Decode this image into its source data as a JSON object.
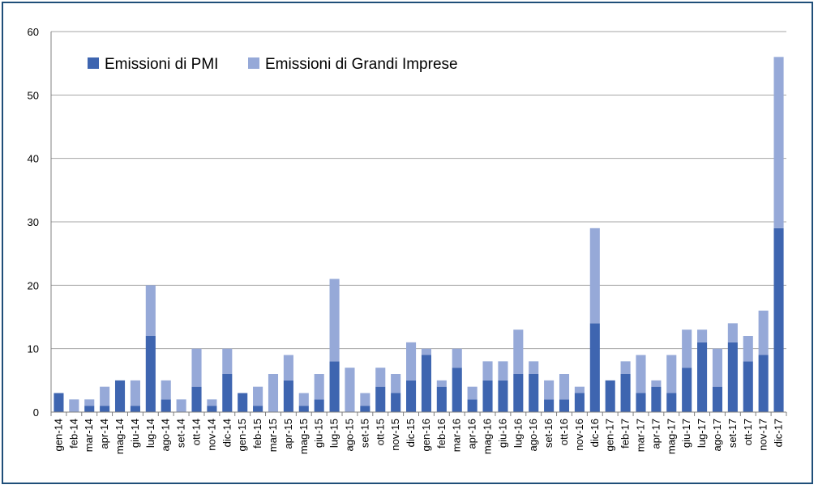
{
  "chart_data": {
    "type": "bar",
    "stacked": true,
    "categories": [
      "gen-14",
      "feb-14",
      "mar-14",
      "apr-14",
      "mag-14",
      "giu-14",
      "lug-14",
      "ago-14",
      "set-14",
      "ott-14",
      "nov-14",
      "dic-14",
      "gen-15",
      "feb-15",
      "mar-15",
      "apr-15",
      "mag-15",
      "giu-15",
      "lug-15",
      "ago-15",
      "set-15",
      "ott-15",
      "nov-15",
      "dic-15",
      "gen-16",
      "feb-16",
      "mar-16",
      "apr-16",
      "mag-16",
      "giu-16",
      "lug-16",
      "ago-16",
      "set-16",
      "ott-16",
      "nov-16",
      "dic-16",
      "gen-17",
      "feb-17",
      "mar-17",
      "apr-17",
      "mag-17",
      "giu-17",
      "lug-17",
      "ago-17",
      "set-17",
      "ott-17",
      "nov-17",
      "dic-17"
    ],
    "series": [
      {
        "name": "Emissioni di PMI",
        "color": "#3e65b0",
        "values": [
          3,
          0,
          1,
          1,
          5,
          1,
          12,
          2,
          0,
          4,
          1,
          6,
          3,
          1,
          0,
          5,
          1,
          2,
          8,
          0,
          1,
          4,
          3,
          5,
          9,
          4,
          7,
          2,
          5,
          5,
          6,
          6,
          2,
          2,
          3,
          14,
          5,
          6,
          3,
          4,
          3,
          7,
          11,
          4,
          11,
          8,
          9,
          29
        ]
      },
      {
        "name": "Emissioni di Grandi Imprese",
        "color": "#96a9d8",
        "values": [
          0,
          2,
          1,
          3,
          0,
          4,
          8,
          3,
          2,
          6,
          1,
          4,
          0,
          3,
          6,
          4,
          2,
          4,
          13,
          7,
          2,
          3,
          3,
          6,
          1,
          1,
          3,
          2,
          3,
          3,
          7,
          2,
          3,
          4,
          1,
          15,
          0,
          2,
          6,
          1,
          6,
          6,
          2,
          6,
          3,
          4,
          7,
          27
        ]
      }
    ],
    "ylim": [
      0,
      60
    ],
    "yticks": [
      0,
      10,
      20,
      30,
      40,
      50,
      60
    ],
    "grid": true,
    "legend_position": "top-left"
  }
}
